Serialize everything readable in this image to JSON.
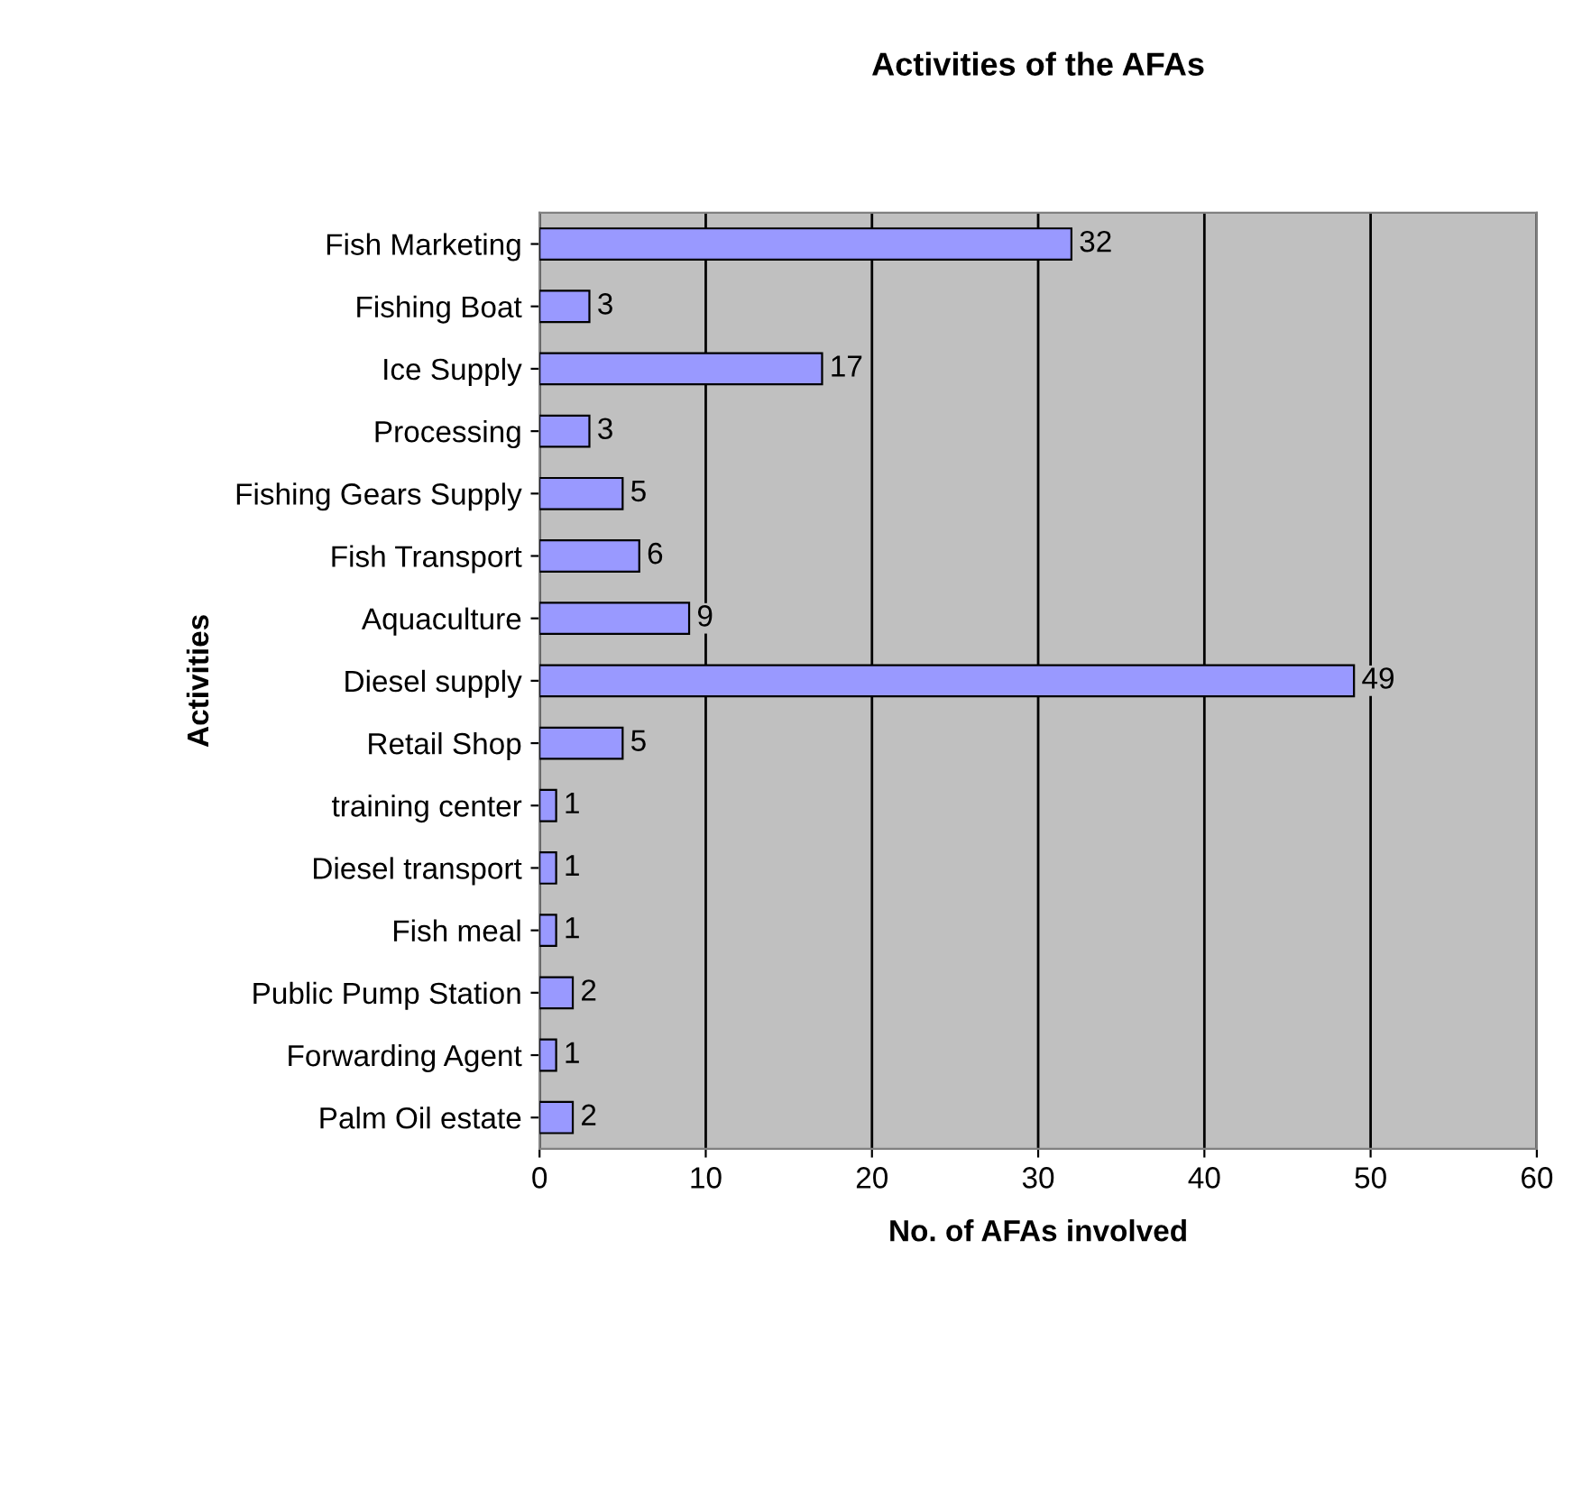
{
  "chart_data": {
    "type": "bar",
    "orientation": "horizontal",
    "title": "Activities of the AFAs",
    "xlabel": "No. of AFAs involved",
    "ylabel": "Activities",
    "categories": [
      "Fish Marketing",
      "Fishing Boat",
      "Ice Supply",
      "Processing",
      "Fishing Gears Supply",
      "Fish Transport",
      "Aquaculture",
      "Diesel supply",
      "Retail Shop",
      "training center",
      "Diesel transport",
      "Fish meal",
      "Public Pump Station",
      "Forwarding Agent",
      "Palm Oil estate"
    ],
    "values": [
      32,
      3,
      17,
      3,
      5,
      6,
      9,
      49,
      5,
      1,
      1,
      1,
      2,
      1,
      2
    ],
    "color": "#9999ff",
    "xlim": [
      0,
      60
    ],
    "xticks": [
      0,
      10,
      20,
      30,
      40,
      50,
      60
    ],
    "grid": "x",
    "data_labels": true,
    "legend": false
  }
}
